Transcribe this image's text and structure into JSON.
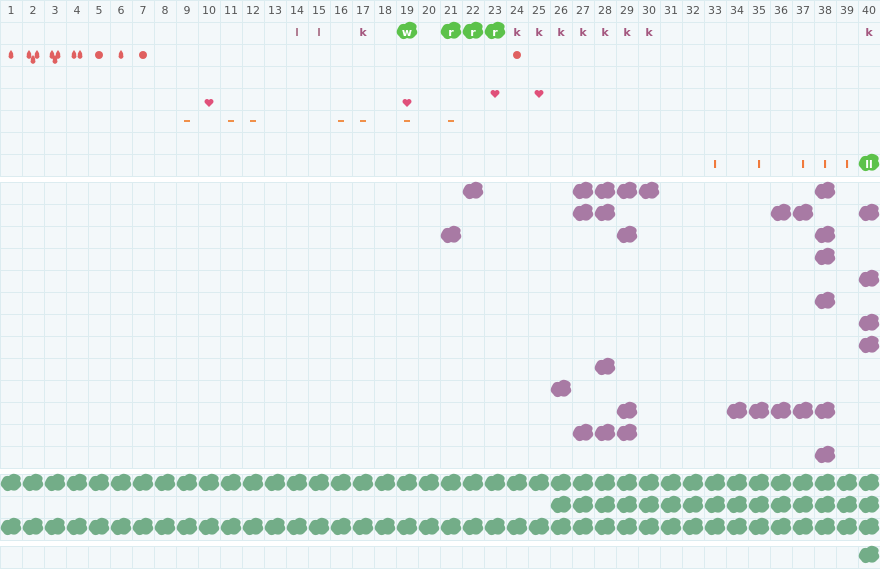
{
  "header": [
    "1",
    "2",
    "3",
    "4",
    "5",
    "6",
    "7",
    "8",
    "9",
    "10",
    "11",
    "12",
    "13",
    "14",
    "15",
    "16",
    "17",
    "18",
    "19",
    "20",
    "21",
    "22",
    "23",
    "24",
    "25",
    "26",
    "27",
    "28",
    "29",
    "30",
    "31",
    "32",
    "33",
    "34",
    "35",
    "36",
    "37",
    "38",
    "39",
    "40"
  ],
  "top_labels": [
    [
      null,
      null,
      null,
      null,
      null,
      null,
      null,
      null,
      null,
      null,
      null,
      null,
      null,
      "l",
      "l",
      null,
      "k",
      null,
      "w",
      null,
      "r",
      "r",
      "r",
      "k",
      "k",
      "k",
      "k",
      "k",
      "k",
      "k",
      null,
      null,
      null,
      null,
      null,
      null,
      null,
      null,
      null,
      "k"
    ],
    [
      null,
      null,
      null,
      null,
      null,
      null,
      null,
      null,
      null,
      null,
      null,
      null,
      null,
      null,
      null,
      null,
      null,
      null,
      null,
      null,
      null,
      null,
      null,
      null,
      null,
      null,
      null,
      null,
      null,
      null,
      null,
      null,
      "I",
      null,
      "I",
      null,
      "I",
      "I",
      "I",
      "ll"
    ]
  ]
}
